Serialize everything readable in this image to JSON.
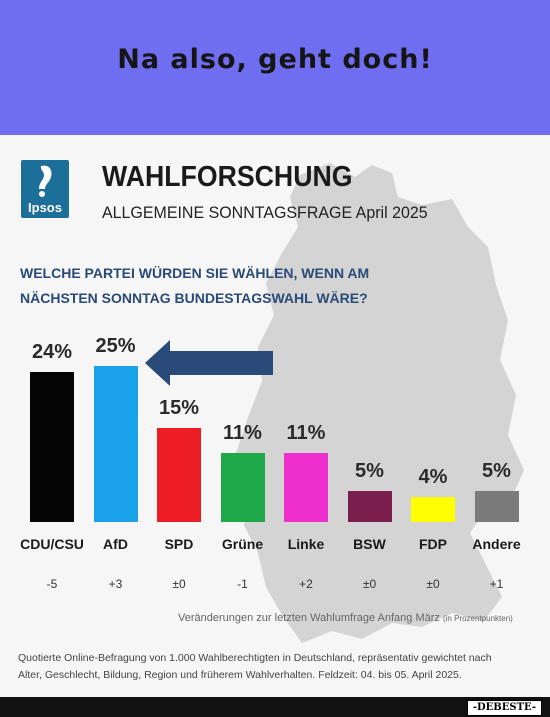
{
  "banner": {
    "title": "Na also, geht doch!"
  },
  "header": {
    "logo_text": "Ipsos",
    "title": "WAHLFORSCHUNG",
    "subtitle": "ALLGEMEINE SONNTAGSFRAGE April 2025"
  },
  "question": {
    "line1": "WELCHE PARTEI WÜRDEN SIE WÄHLEN, WENN AM",
    "line2": "NÄCHSTEN SONNTAG BUNDESTAGSWAHL WÄRE?"
  },
  "chart_data": {
    "type": "bar",
    "categories": [
      "CDU/CSU",
      "AfD",
      "SPD",
      "Grüne",
      "Linke",
      "BSW",
      "FDP",
      "Andere"
    ],
    "values": [
      24,
      25,
      15,
      11,
      11,
      5,
      4,
      5
    ],
    "value_labels": [
      "24%",
      "25%",
      "15%",
      "11%",
      "11%",
      "5%",
      "4%",
      "5%"
    ],
    "changes": [
      "-5",
      "+3",
      "±0",
      "-1",
      "+2",
      "±0",
      "±0",
      "+1"
    ],
    "colors": [
      "#050505",
      "#1aa3e8",
      "#ec1e24",
      "#1fa84a",
      "#ee2fce",
      "#7a1e4e",
      "#ffff00",
      "#7a7a7a"
    ],
    "annotation": "arrow pointing to AfD",
    "title": "",
    "xlabel": "",
    "ylabel": "",
    "ylim": [
      0,
      25
    ]
  },
  "change_note": {
    "main": "Veränderungen zur letzten Wahlumfrage Anfang März",
    "small": "(in Prozentpunkten)"
  },
  "footnote": {
    "line1": "Quotierte Online-Befragung von 1.000 Wahlberechtigten in Deutschland, repräsentativ gewichtet nach",
    "line2": "Alter, Geschlecht, Bildung, Region und früherem Wahlverhalten. Feldzeit: 04. bis 05. April 2025."
  },
  "watermark": "-DEBESTE-"
}
